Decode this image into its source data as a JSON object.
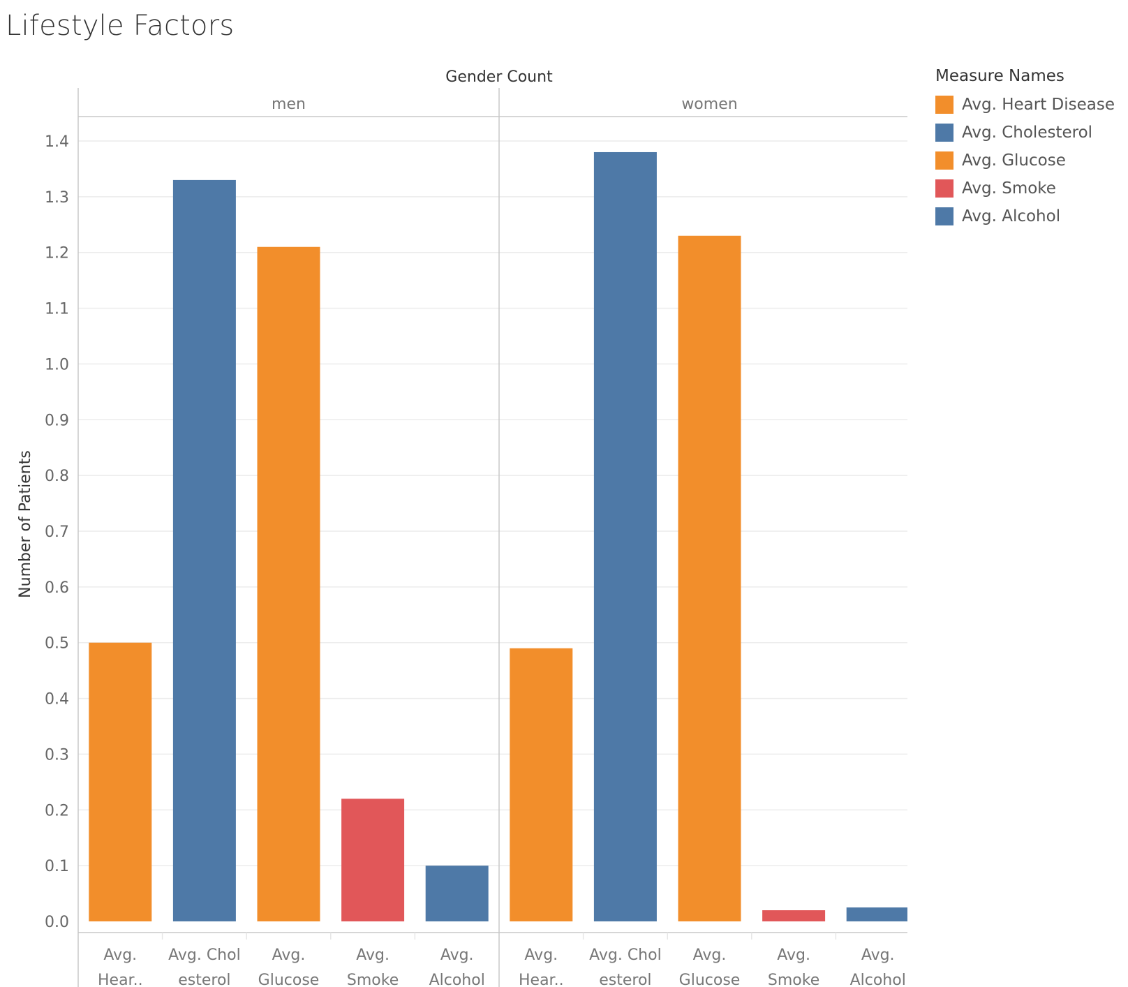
{
  "chart_data": {
    "type": "bar",
    "title": "Lifestyle Factors",
    "column_header": "Gender Count",
    "ylabel": "Number of Patients",
    "ylim": [
      0,
      1.4
    ],
    "yticks": [
      "0.0",
      "0.1",
      "0.2",
      "0.3",
      "0.4",
      "0.5",
      "0.6",
      "0.7",
      "0.8",
      "0.9",
      "1.0",
      "1.1",
      "1.2",
      "1.3",
      "1.4"
    ],
    "categories": [
      {
        "name": "Avg. Heart Disease",
        "label_lines": [
          "Avg.",
          "Hear.."
        ],
        "color": "#f28e2b"
      },
      {
        "name": "Avg. Cholesterol",
        "label_lines": [
          "Avg. Chol",
          "esterol"
        ],
        "color": "#4e79a7"
      },
      {
        "name": "Avg. Glucose",
        "label_lines": [
          "Avg.",
          "Glucose"
        ],
        "color": "#f28e2b"
      },
      {
        "name": "Avg. Smoke",
        "label_lines": [
          "Avg.",
          "Smoke"
        ],
        "color": "#e15759"
      },
      {
        "name": "Avg. Alcohol",
        "label_lines": [
          "Avg.",
          "Alcohol"
        ],
        "color": "#4e79a7"
      }
    ],
    "panels": [
      {
        "name": "men",
        "values": [
          0.5,
          1.33,
          1.21,
          0.22,
          0.1
        ]
      },
      {
        "name": "women",
        "values": [
          0.49,
          1.38,
          1.23,
          0.02,
          0.025
        ]
      }
    ],
    "legend": {
      "title": "Measure Names",
      "position": "top-right"
    },
    "grid": true
  }
}
